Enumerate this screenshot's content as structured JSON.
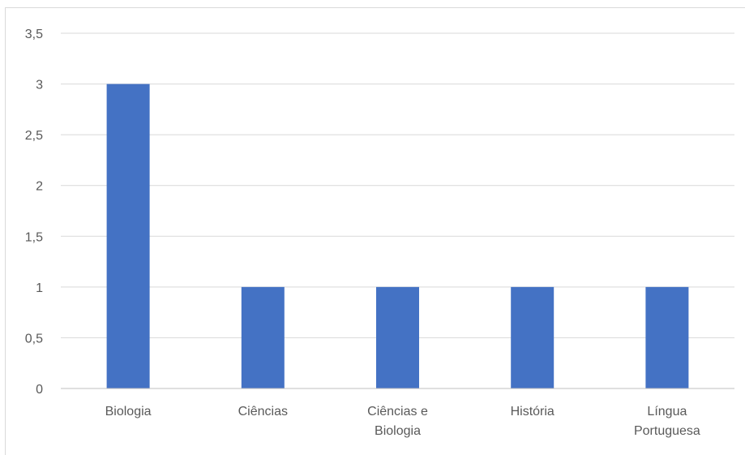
{
  "chart_data": {
    "type": "bar",
    "title": "",
    "xlabel": "",
    "ylabel": "",
    "categories": [
      [
        "Biologia"
      ],
      [
        "Ciências"
      ],
      [
        "Ciências e",
        "Biologia"
      ],
      [
        "História"
      ],
      [
        "Língua",
        "Portuguesa"
      ]
    ],
    "values": [
      3,
      1,
      1,
      1,
      1
    ],
    "ylim": [
      0,
      3.5
    ],
    "yticks": [
      "0",
      "0,5",
      "1",
      "1,5",
      "2",
      "2,5",
      "3",
      "3,5"
    ],
    "grid": true,
    "legend": "none",
    "colors": {
      "bar": "#4472c4",
      "gridline": "#d9d9d9",
      "axis": "#bfbfbf",
      "text": "#595959"
    }
  }
}
